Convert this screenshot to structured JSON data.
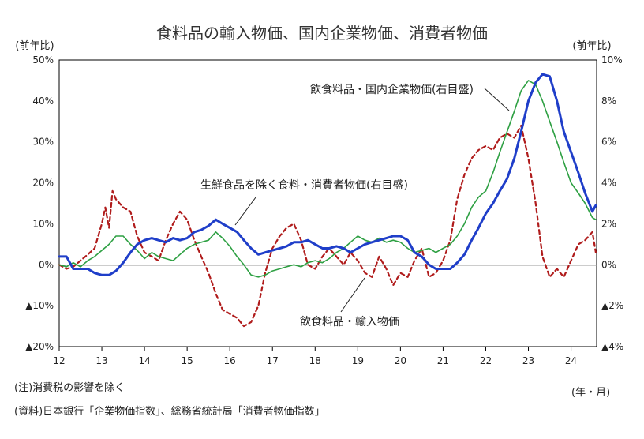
{
  "chart_data": {
    "type": "line",
    "title": "食料品の輸入物価、国内企業物価、消費者物価",
    "left_axis": {
      "unit_label": "(前年比)",
      "range": [
        -20,
        50
      ],
      "ticks": [
        50,
        40,
        30,
        20,
        10,
        0,
        -10,
        -20
      ],
      "tick_labels": [
        "50%",
        "40%",
        "30%",
        "20%",
        "10%",
        "0%",
        "▲10%",
        "▲20%"
      ]
    },
    "right_axis": {
      "unit_label": "(前年比)",
      "range": [
        -4,
        10
      ],
      "ticks": [
        10,
        8,
        6,
        4,
        2,
        0,
        -2,
        -4
      ],
      "tick_labels": [
        "10%",
        "8%",
        "6%",
        "4%",
        "2%",
        "0%",
        "▲2%",
        "▲4%"
      ]
    },
    "x_axis": {
      "unit_label": "(年・月)",
      "range": [
        12,
        24.6
      ],
      "ticks": [
        12,
        13,
        14,
        15,
        16,
        17,
        18,
        19,
        20,
        21,
        22,
        23,
        24
      ],
      "tick_labels": [
        "12",
        "13",
        "14",
        "15",
        "16",
        "17",
        "18",
        "19",
        "20",
        "21",
        "22",
        "23",
        "24"
      ]
    },
    "series": [
      {
        "name": "飲食料品・輸入物価",
        "axis": "left",
        "style": "dashed",
        "color": "#b01c1c",
        "x": [
          12.0,
          12.17,
          12.33,
          12.5,
          12.67,
          12.83,
          13.0,
          13.08,
          13.17,
          13.25,
          13.33,
          13.5,
          13.67,
          13.83,
          14.0,
          14.17,
          14.33,
          14.5,
          14.67,
          14.83,
          15.0,
          15.17,
          15.33,
          15.5,
          15.67,
          15.83,
          16.0,
          16.17,
          16.33,
          16.5,
          16.67,
          16.83,
          17.0,
          17.17,
          17.33,
          17.5,
          17.67,
          17.83,
          18.0,
          18.17,
          18.33,
          18.5,
          18.67,
          18.83,
          19.0,
          19.17,
          19.33,
          19.5,
          19.67,
          19.83,
          20.0,
          20.17,
          20.33,
          20.5,
          20.67,
          20.83,
          21.0,
          21.17,
          21.33,
          21.5,
          21.67,
          21.83,
          22.0,
          22.17,
          22.33,
          22.5,
          22.67,
          22.83,
          23.0,
          23.17,
          23.33,
          23.5,
          23.67,
          23.83,
          24.0,
          24.17,
          24.33,
          24.5,
          24.58
        ],
        "values": [
          0,
          -1,
          -0.5,
          1,
          2.5,
          4,
          10,
          14,
          9,
          18,
          16,
          14,
          13,
          7,
          3,
          2,
          1,
          6,
          10,
          13,
          11,
          6,
          2,
          -2,
          -7,
          -11,
          -12,
          -13,
          -15,
          -14,
          -10,
          -2,
          4,
          7,
          9,
          10,
          6,
          0,
          -1,
          2,
          4,
          2,
          0,
          3,
          1,
          -2,
          -3,
          2,
          -1,
          -5,
          -2,
          -3,
          1,
          4,
          -3,
          -2,
          1,
          6,
          16,
          22,
          26,
          28,
          29,
          28,
          31,
          32,
          31,
          34,
          26,
          15,
          2,
          -3,
          -1,
          -3,
          1,
          5,
          6,
          8,
          3
        ]
      },
      {
        "name": "飲食料品・国内企業物価(右目盛)",
        "axis": "right",
        "style": "solid",
        "color": "#2ea043",
        "x": [
          12.0,
          12.17,
          12.33,
          12.5,
          12.67,
          12.83,
          13.0,
          13.17,
          13.33,
          13.5,
          13.67,
          13.83,
          14.0,
          14.17,
          14.33,
          14.5,
          14.67,
          14.83,
          15.0,
          15.17,
          15.33,
          15.5,
          15.67,
          15.83,
          16.0,
          16.17,
          16.33,
          16.5,
          16.67,
          16.83,
          17.0,
          17.17,
          17.33,
          17.5,
          17.67,
          17.83,
          18.0,
          18.17,
          18.33,
          18.5,
          18.67,
          18.83,
          19.0,
          19.17,
          19.33,
          19.5,
          19.67,
          19.83,
          20.0,
          20.17,
          20.33,
          20.5,
          20.67,
          20.83,
          21.0,
          21.17,
          21.33,
          21.5,
          21.67,
          21.83,
          22.0,
          22.17,
          22.33,
          22.5,
          22.67,
          22.83,
          23.0,
          23.17,
          23.33,
          23.5,
          23.67,
          23.83,
          24.0,
          24.17,
          24.33,
          24.5,
          24.58
        ],
        "values": [
          0.0,
          -0.1,
          0.1,
          -0.1,
          0.2,
          0.4,
          0.7,
          1.0,
          1.4,
          1.4,
          1.0,
          0.7,
          0.3,
          0.6,
          0.4,
          0.3,
          0.2,
          0.5,
          0.8,
          1.0,
          1.1,
          1.2,
          1.6,
          1.3,
          0.9,
          0.4,
          0.0,
          -0.5,
          -0.6,
          -0.5,
          -0.3,
          -0.2,
          -0.1,
          0.0,
          -0.1,
          0.1,
          0.2,
          0.1,
          0.3,
          0.6,
          0.8,
          1.1,
          1.4,
          1.2,
          1.1,
          1.3,
          1.1,
          1.2,
          1.1,
          0.8,
          0.6,
          0.7,
          0.8,
          0.6,
          0.8,
          1.0,
          1.4,
          2.0,
          2.8,
          3.3,
          3.6,
          4.5,
          5.5,
          6.5,
          7.5,
          8.5,
          9.0,
          8.8,
          8.0,
          7.0,
          6.0,
          5.0,
          4.0,
          3.5,
          3.0,
          2.3,
          2.2
        ]
      },
      {
        "name": "生鮮食品を除く食料・消費者物価(右目盛)",
        "axis": "right",
        "style": "solid",
        "color": "#1f3ec9",
        "x": [
          12.0,
          12.17,
          12.33,
          12.5,
          12.67,
          12.83,
          13.0,
          13.17,
          13.33,
          13.5,
          13.67,
          13.83,
          14.0,
          14.17,
          14.33,
          14.5,
          14.67,
          14.83,
          15.0,
          15.17,
          15.33,
          15.5,
          15.67,
          15.83,
          16.0,
          16.17,
          16.33,
          16.5,
          16.67,
          16.83,
          17.0,
          17.17,
          17.33,
          17.5,
          17.67,
          17.83,
          18.0,
          18.17,
          18.33,
          18.5,
          18.67,
          18.83,
          19.0,
          19.17,
          19.33,
          19.5,
          19.67,
          19.83,
          20.0,
          20.17,
          20.33,
          20.5,
          20.67,
          20.83,
          21.0,
          21.17,
          21.33,
          21.5,
          21.67,
          21.83,
          22.0,
          22.17,
          22.33,
          22.5,
          22.67,
          22.83,
          23.0,
          23.17,
          23.33,
          23.5,
          23.67,
          23.83,
          24.0,
          24.17,
          24.33,
          24.5,
          24.58
        ],
        "values": [
          0.4,
          0.4,
          -0.2,
          -0.2,
          -0.2,
          -0.4,
          -0.5,
          -0.5,
          -0.3,
          0.1,
          0.6,
          1.0,
          1.2,
          1.3,
          1.2,
          1.1,
          1.3,
          1.2,
          1.3,
          1.6,
          1.7,
          1.9,
          2.2,
          2.0,
          1.8,
          1.6,
          1.2,
          0.8,
          0.5,
          0.6,
          0.7,
          0.8,
          0.9,
          1.1,
          1.1,
          1.2,
          1.0,
          0.8,
          0.8,
          0.9,
          0.8,
          0.6,
          0.8,
          1.0,
          1.1,
          1.2,
          1.3,
          1.4,
          1.4,
          1.2,
          0.6,
          0.4,
          0.0,
          -0.2,
          -0.2,
          -0.2,
          0.1,
          0.5,
          1.2,
          1.8,
          2.5,
          3.0,
          3.6,
          4.2,
          5.2,
          6.5,
          8.0,
          8.9,
          9.3,
          9.2,
          8.0,
          6.5,
          5.5,
          4.5,
          3.5,
          2.6,
          2.9
        ]
      }
    ],
    "annotations": [
      {
        "text": "飲食料品・国内企業物価(右目盛)",
        "points_to": "飲食料品・国内企業物価(右目盛)"
      },
      {
        "text": "生鮮食品を除く食料・消費者物価(右目盛)",
        "points_to": "生鮮食品を除く食料・消費者物価(右目盛)"
      },
      {
        "text": "飲食料品・輸入物価",
        "points_to": "飲食料品・輸入物価"
      }
    ]
  },
  "notes": {
    "note1": "(注)消費税の影響を除く",
    "note2": "(資料)日本銀行「企業物価指数」、総務省統計局「消費者物価指数」"
  }
}
